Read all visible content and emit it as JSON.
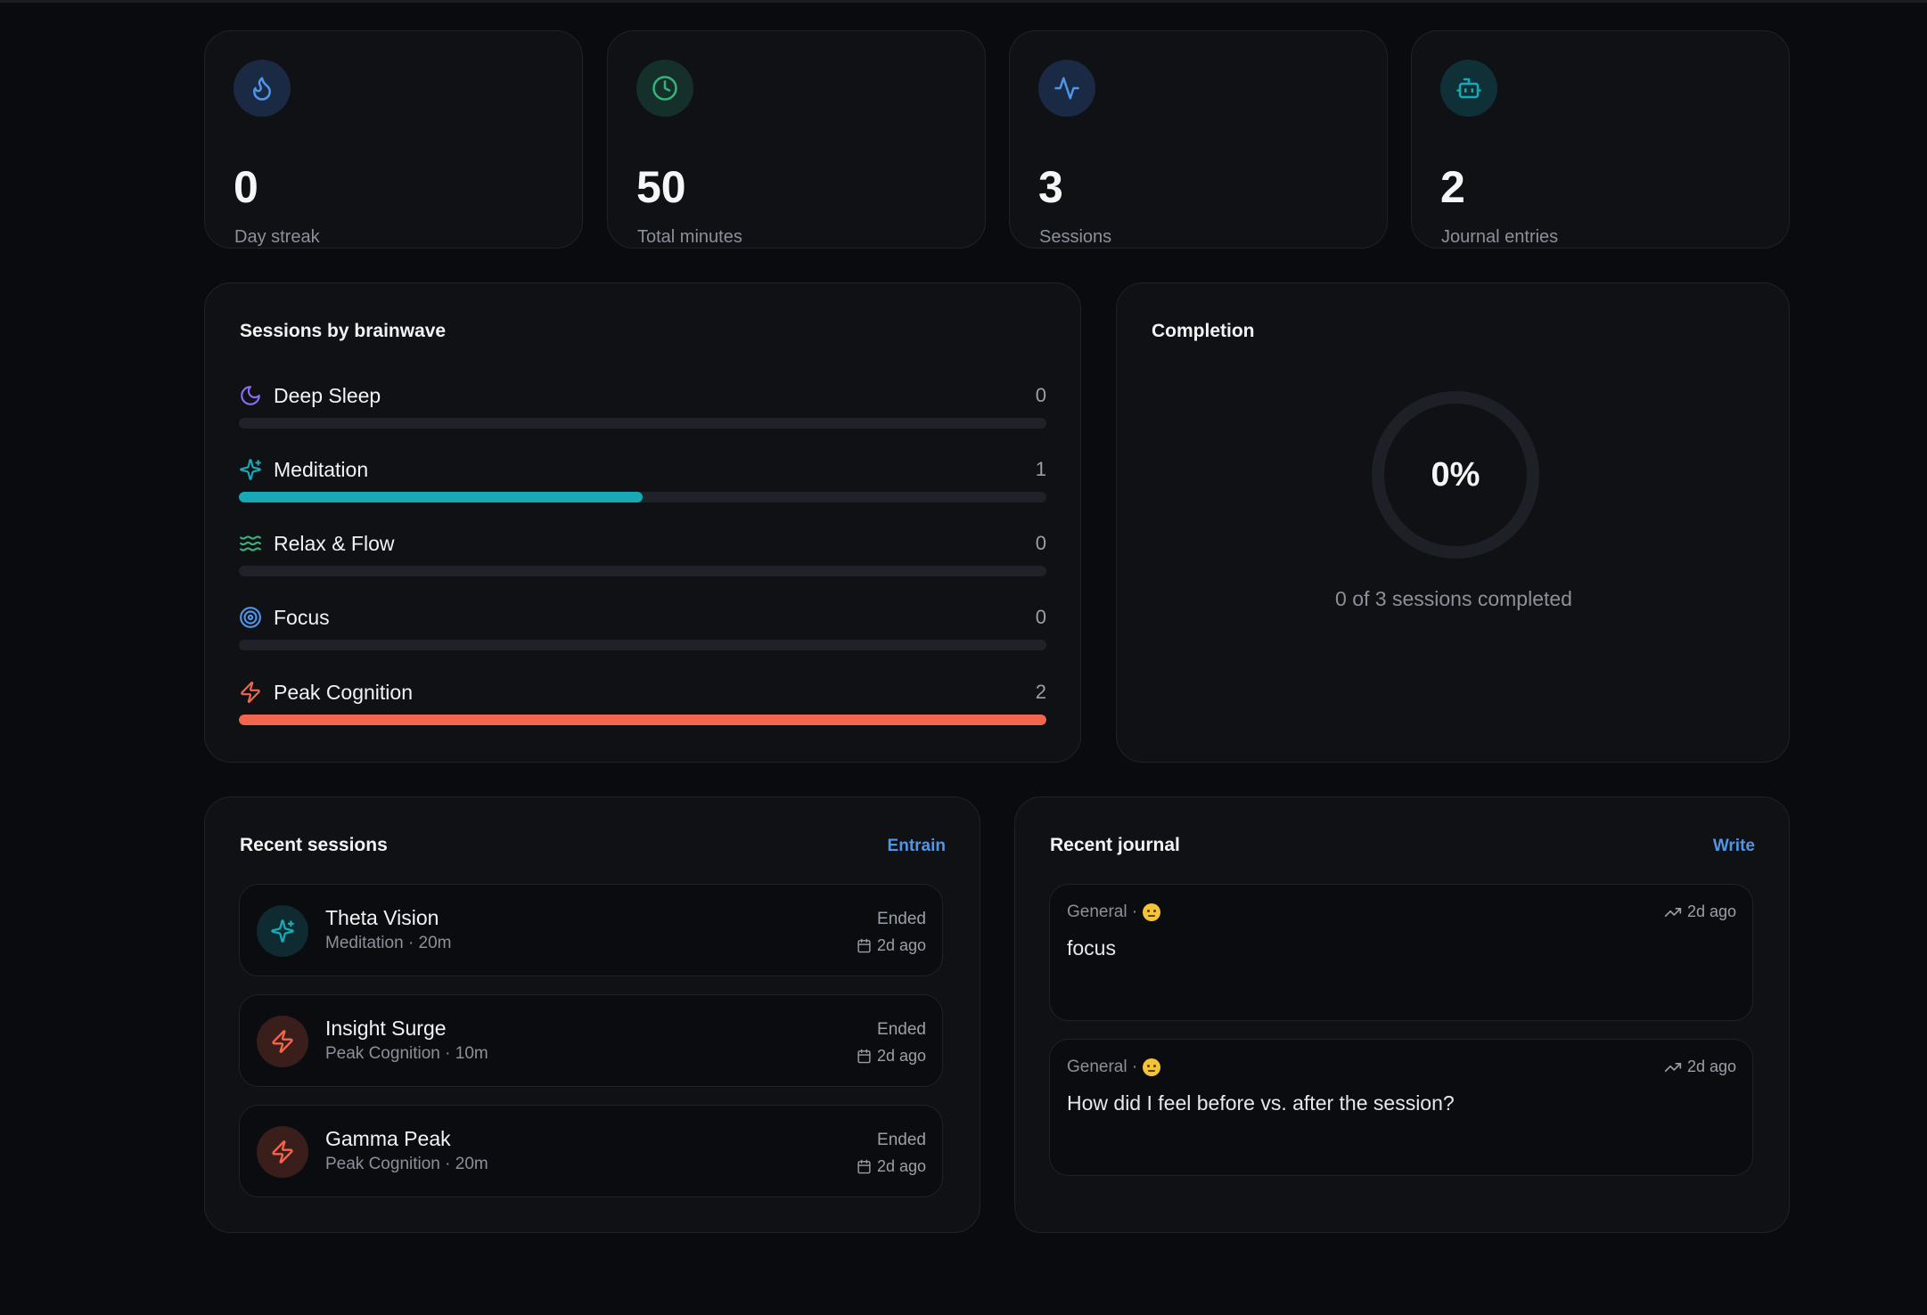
{
  "stats": [
    {
      "value": "0",
      "label": "Day streak",
      "icon": "flame-icon",
      "color": "#4f95e8",
      "bg": "#1a2a44"
    },
    {
      "value": "50",
      "label": "Total minutes",
      "icon": "clock-icon",
      "color": "#38b27a",
      "bg": "#15302a"
    },
    {
      "value": "3",
      "label": "Sessions",
      "icon": "activity-icon",
      "color": "#4f95e8",
      "bg": "#1a2a44"
    },
    {
      "value": "2",
      "label": "Journal entries",
      "icon": "bot-icon",
      "color": "#17a9b5",
      "bg": "#0f3036"
    }
  ],
  "brainwave": {
    "title": "Sessions by brainwave",
    "max": 2,
    "items": [
      {
        "name": "Deep Sleep",
        "count": "0",
        "value": 0,
        "icon": "moon-icon",
        "color": "#8b6cf0"
      },
      {
        "name": "Meditation",
        "count": "1",
        "value": 1,
        "icon": "sparkles-icon",
        "color": "#17a9b5"
      },
      {
        "name": "Relax & Flow",
        "count": "0",
        "value": 0,
        "icon": "waves-icon",
        "color": "#38b27a"
      },
      {
        "name": "Focus",
        "count": "0",
        "value": 0,
        "icon": "target-icon",
        "color": "#4f95e8"
      },
      {
        "name": "Peak Cognition",
        "count": "2",
        "value": 2,
        "icon": "zap-icon",
        "color": "#f2654f"
      }
    ]
  },
  "completion": {
    "title": "Completion",
    "percent_label": "0%",
    "percent": 0,
    "subtitle": "0 of 3 sessions completed"
  },
  "recent_sessions": {
    "title": "Recent sessions",
    "action": "Entrain",
    "items": [
      {
        "name": "Theta Vision",
        "meta": "Meditation · 20m",
        "status": "Ended",
        "date": "2d ago",
        "icon": "sparkles-icon",
        "color": "#17a9b5",
        "bg": "#0f2a30"
      },
      {
        "name": "Insight Surge",
        "meta": "Peak Cognition · 10m",
        "status": "Ended",
        "date": "2d ago",
        "icon": "zap-icon",
        "color": "#f2654f",
        "bg": "#3a1e1c"
      },
      {
        "name": "Gamma Peak",
        "meta": "Peak Cognition · 20m",
        "status": "Ended",
        "date": "2d ago",
        "icon": "zap-icon",
        "color": "#f2654f",
        "bg": "#3a1e1c"
      }
    ]
  },
  "recent_journal": {
    "title": "Recent journal",
    "action": "Write",
    "items": [
      {
        "category": "General ·",
        "date": "2d ago",
        "text": "focus"
      },
      {
        "category": "General ·",
        "date": "2d ago",
        "text": "How did I feel before vs. after the session?"
      }
    ]
  }
}
